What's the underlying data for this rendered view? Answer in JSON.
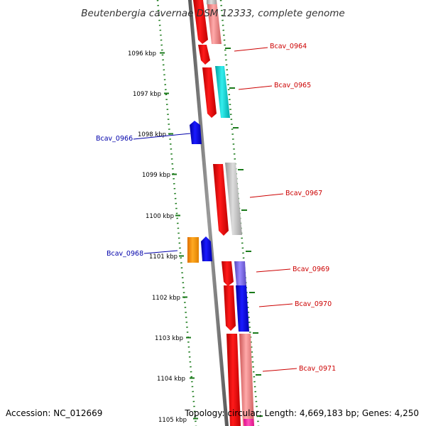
{
  "title": "Beutenbergia cavernae DSM 12333, complete genome",
  "footer": {
    "accession": "Accession: NC_012669",
    "stats": "Topology: circular; Length: 4,669,183 bp; Genes: 4,250"
  },
  "ruler_labels": [
    "1096 kbp",
    "1097 kbp",
    "1098 kbp",
    "1099 kbp",
    "1100 kbp",
    "1101 kbp",
    "1102 kbp",
    "1103 kbp",
    "1104 kbp",
    "1105 kbp"
  ],
  "gene_labels": {
    "bcav_0964": "Bcav_0964",
    "bcav_0965": "Bcav_0965",
    "bcav_0966": "Bcav_0966",
    "bcav_0967": "Bcav_0967",
    "bcav_0968": "Bcav_0968",
    "bcav_0969": "Bcav_0969",
    "bcav_0970": "Bcav_0970",
    "bcav_0971": "Bcav_0971"
  },
  "colors": {
    "forward_gene_label": "#cc0000",
    "reverse_gene_label": "#0000aa",
    "backbone": "#808080",
    "ruler_dots": "#1a7a1a",
    "cds_red": "#ee0000",
    "cds_blue": "#0000ee",
    "cds_orange": "#ff9900",
    "cog_cyan": "#00cccc",
    "cog_grey": "#bbbbbb",
    "cog_pink": "#ee8888",
    "cog_purple": "#7766dd",
    "cog_magenta": "#ff33aa"
  }
}
